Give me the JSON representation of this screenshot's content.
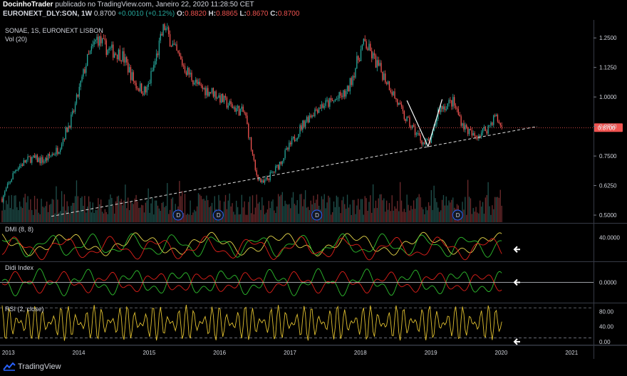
{
  "header": {
    "author": "DocinhoTrader",
    "published_text": "publicado no TradingView.com, Janeiro 22, 2020 11:28:50 CET",
    "symbol": "EURONEXT_DLY:SON, 1W",
    "last": "0.8700",
    "change": "+0.0010 (+0.12%)",
    "open_label": "O:",
    "open": "0.8820",
    "high_label": "H:",
    "high": "0.8865",
    "low_label": "L:",
    "low": "0.8670",
    "close_label": "C:",
    "close": "0.8700"
  },
  "chart_data": [
    {
      "type": "candlestick",
      "title": "SONAE, 1S, EURONEXT LISBON",
      "subtitle": "Vol (20)",
      "y_ticks": [
        1.25,
        1.125,
        1.0,
        0.875,
        0.75,
        0.625,
        0.5
      ],
      "y_tick_labels": [
        "1.2500",
        "1.1250",
        "1.0000",
        "0.8750",
        "0.7500",
        "0.6250",
        "0.5000"
      ],
      "ylim": [
        0.47,
        1.32
      ],
      "last_price_label": "0.8700",
      "last_price": 0.87,
      "x_tick_labels": [
        "2013",
        "2014",
        "2015",
        "2016",
        "2017",
        "2018",
        "2019",
        "2020",
        "2021"
      ],
      "x_ticks": [
        2013.0,
        2014.0,
        2015.0,
        2016.0,
        2017.0,
        2018.0,
        2019.0,
        2020.0,
        2021.0
      ],
      "xlim": [
        2012.87,
        2021.3
      ],
      "close_path": [
        [
          2012.9,
          0.57
        ],
        [
          2013.1,
          0.7
        ],
        [
          2013.3,
          0.74
        ],
        [
          2013.5,
          0.73
        ],
        [
          2013.7,
          0.78
        ],
        [
          2013.9,
          0.92
        ],
        [
          2014.1,
          1.15
        ],
        [
          2014.25,
          1.25
        ],
        [
          2014.4,
          1.2
        ],
        [
          2014.6,
          1.18
        ],
        [
          2014.8,
          1.05
        ],
        [
          2014.95,
          1.02
        ],
        [
          2015.1,
          1.18
        ],
        [
          2015.2,
          1.3
        ],
        [
          2015.35,
          1.2
        ],
        [
          2015.5,
          1.12
        ],
        [
          2015.7,
          1.04
        ],
        [
          2015.9,
          1.02
        ],
        [
          2016.1,
          0.97
        ],
        [
          2016.35,
          0.93
        ],
        [
          2016.5,
          0.68
        ],
        [
          2016.6,
          0.63
        ],
        [
          2016.8,
          0.7
        ],
        [
          2017.0,
          0.8
        ],
        [
          2017.2,
          0.9
        ],
        [
          2017.4,
          0.96
        ],
        [
          2017.6,
          0.98
        ],
        [
          2017.8,
          1.02
        ],
        [
          2018.0,
          1.2
        ],
        [
          2018.05,
          1.23
        ],
        [
          2018.2,
          1.15
        ],
        [
          2018.4,
          1.05
        ],
        [
          2018.6,
          0.92
        ],
        [
          2018.9,
          0.8
        ],
        [
          2019.0,
          0.82
        ],
        [
          2019.1,
          0.95
        ],
        [
          2019.3,
          0.98
        ],
        [
          2019.45,
          0.88
        ],
        [
          2019.6,
          0.83
        ],
        [
          2019.8,
          0.87
        ],
        [
          2019.9,
          0.92
        ],
        [
          2020.0,
          0.87
        ]
      ],
      "drawings": {
        "trendline": [
          [
            2013.6,
            0.495
          ],
          [
            2020.5,
            0.875
          ]
        ],
        "v_pattern": [
          [
            2018.65,
            0.985
          ],
          [
            2018.95,
            0.79
          ],
          [
            2019.15,
            0.99
          ]
        ]
      },
      "dividend_markers_x": [
        2015.4,
        2015.97,
        2017.37,
        2019.37
      ]
    },
    {
      "type": "line",
      "title": "DMI (8, 8)",
      "y_tick_labels": [
        "40.0000"
      ],
      "y_ticks": [
        40
      ],
      "ylim": [
        5,
        60
      ],
      "series": [
        {
          "color": "#e6d64a",
          "role": "adx"
        },
        {
          "color": "#2ebd2e",
          "role": "di_plus"
        },
        {
          "color": "#e0201a",
          "role": "di_minus"
        }
      ]
    },
    {
      "type": "line",
      "title": "Didi Index",
      "y_tick_labels": [
        "0.0000"
      ],
      "y_ticks": [
        0
      ],
      "ylim": [
        -1,
        1
      ],
      "series": [
        {
          "color": "#2ebd2e",
          "role": "fast"
        },
        {
          "color": "#e0201a",
          "role": "slow"
        },
        {
          "color": "#d1d4dc",
          "role": "baseline"
        }
      ]
    },
    {
      "type": "line",
      "title": "RSI (2, close)",
      "y_tick_labels": [
        "80.00",
        "40.00",
        "0.00"
      ],
      "y_ticks": [
        80,
        40,
        0
      ],
      "ylim": [
        -6,
        100
      ],
      "bands": [
        90,
        10
      ],
      "series": [
        {
          "color": "#e0c030",
          "role": "rsi"
        }
      ]
    }
  ],
  "colors": {
    "up": "#26a69a",
    "down": "#ef5350",
    "vol_up": "#1f4e4a",
    "vol_down": "#6b2a2c",
    "background": "#000000",
    "last_price_label_bg": "#ef5350",
    "arrow": "#ffffff"
  },
  "footer": {
    "brand": "TradingView",
    "icon": "tradingview-logo-icon"
  },
  "dividend_marker_label": "D"
}
